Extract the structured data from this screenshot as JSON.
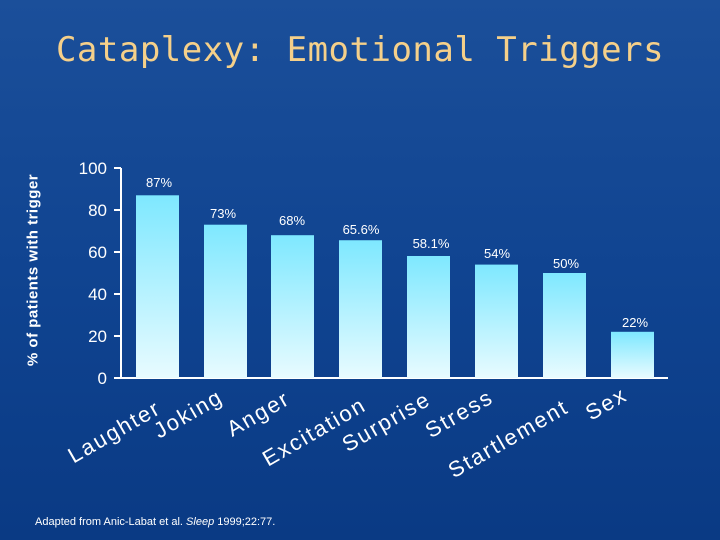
{
  "colors": {
    "background": "#0f4390",
    "title": "#f5d08a",
    "text": "#ffffff",
    "bar_top": "#7ee8ff",
    "bar_bottom": "#e8fbff",
    "axis": "#ffffff"
  },
  "slide": {
    "title": "Cataplexy: Emotional Triggers",
    "footnote_prefix": "Adapted from Anic-Labat et al. ",
    "footnote_journal": "Sleep",
    "footnote_suffix": " 1999;22:77."
  },
  "chart_data": {
    "type": "bar",
    "title": "Cataplexy: Emotional Triggers",
    "xlabel": "",
    "ylabel": "% of patients with trigger",
    "ylim": [
      0,
      100
    ],
    "yticks": [
      0,
      20,
      40,
      60,
      80,
      100
    ],
    "grid": false,
    "categories": [
      "Laughter",
      "Joking",
      "Anger",
      "Excitation",
      "Surprise",
      "Stress",
      "Startlement",
      "Sex"
    ],
    "values": [
      87,
      73,
      68,
      65.6,
      58.1,
      54,
      50,
      22
    ],
    "data_labels": [
      "87%",
      "73%",
      "68%",
      "65.6%",
      "58.1%",
      "54%",
      "50%",
      "22%"
    ]
  }
}
